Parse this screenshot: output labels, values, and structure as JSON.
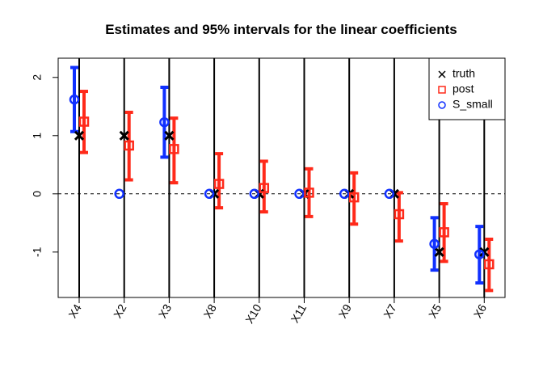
{
  "chart_data": {
    "type": "scatter",
    "title": "Estimates and 95% intervals for the linear coefficients",
    "xlabel": "",
    "ylabel": "",
    "categories": [
      "X4",
      "X2",
      "X3",
      "X8",
      "X10",
      "X11",
      "X9",
      "X7",
      "X5",
      "X6"
    ],
    "ylim": [
      -1.78,
      2.33
    ],
    "yticks": [
      -1,
      0,
      1,
      2
    ],
    "ytick_labels": [
      "-1",
      "0",
      "1",
      "2"
    ],
    "reference_line": 0,
    "legend_position": "top-right",
    "series": [
      {
        "name": "truth",
        "marker": "x",
        "color": "#000000",
        "values": [
          1,
          1,
          1,
          0,
          0,
          0,
          0,
          0,
          -1,
          -1
        ]
      },
      {
        "name": "post",
        "marker": "square",
        "color": "#ff2a1a",
        "values": [
          1.24,
          0.83,
          0.77,
          0.17,
          0.1,
          0.02,
          -0.06,
          -0.35,
          -0.66,
          -1.21
        ],
        "lower": [
          0.71,
          0.24,
          0.19,
          -0.24,
          -0.31,
          -0.39,
          -0.52,
          -0.81,
          -1.16,
          -1.66
        ],
        "upper": [
          1.76,
          1.4,
          1.3,
          0.69,
          0.56,
          0.43,
          0.36,
          0.02,
          -0.17,
          -0.78
        ]
      },
      {
        "name": "S_small",
        "marker": "circle",
        "color": "#1030ff",
        "values": [
          1.62,
          0,
          1.23,
          0,
          0,
          0,
          0,
          0,
          -0.86,
          -1.04
        ],
        "lower": [
          1.07,
          null,
          0.63,
          null,
          null,
          null,
          null,
          null,
          -1.31,
          -1.53
        ],
        "upper": [
          2.17,
          null,
          1.83,
          null,
          null,
          null,
          null,
          null,
          -0.41,
          -0.56
        ]
      }
    ]
  }
}
